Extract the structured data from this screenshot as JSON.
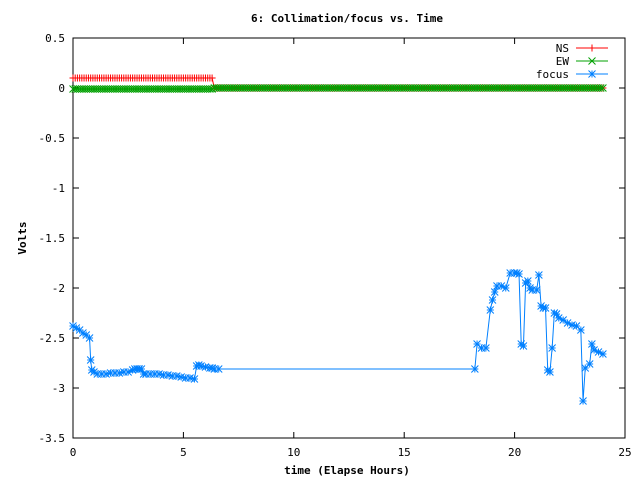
{
  "chart_data": {
    "type": "line",
    "title": "6: Collimation/focus vs. Time",
    "xlabel": "time (Elapse Hours)",
    "ylabel": "Volts",
    "xlim": [
      0,
      25
    ],
    "ylim": [
      -3.5,
      0.5
    ],
    "xticks": [
      0,
      5,
      10,
      15,
      20,
      25
    ],
    "yticks": [
      0.5,
      0,
      -0.5,
      -1,
      -1.5,
      -2,
      -2.5,
      -3,
      -3.5
    ],
    "xtick_labels": [
      "0",
      "5",
      "10",
      "15",
      "20",
      "25"
    ],
    "ytick_labels": [
      "0.5",
      "0",
      "-0.5",
      "-1",
      "-1.5",
      "-2",
      "-2.5",
      "-3",
      "-3.5"
    ],
    "grid": false,
    "legend_position": "top-right",
    "series": [
      {
        "name": "NS",
        "color": "#ff0000",
        "marker": "plus",
        "segments": [
          {
            "x_start": 0.0,
            "x_end": 6.3,
            "step": 0.1,
            "y": 0.1
          },
          {
            "x_start": 6.4,
            "x_end": 24.0,
            "step": 0.1,
            "y": 0.0
          }
        ]
      },
      {
        "name": "EW",
        "color": "#00a000",
        "marker": "cross",
        "segments": [
          {
            "x_start": 0.0,
            "x_end": 6.3,
            "step": 0.1,
            "y": -0.01
          },
          {
            "x_start": 6.4,
            "x_end": 24.0,
            "step": 0.1,
            "y": 0.0
          }
        ]
      },
      {
        "name": "focus",
        "color": "#0080ff",
        "marker": "star",
        "x": [
          0.0,
          0.15,
          0.3,
          0.45,
          0.6,
          0.75,
          0.8,
          0.85,
          0.95,
          1.1,
          1.3,
          1.5,
          1.7,
          1.9,
          2.1,
          2.3,
          2.5,
          2.7,
          2.8,
          2.9,
          3.0,
          3.1,
          3.2,
          3.3,
          3.5,
          3.7,
          3.9,
          4.1,
          4.3,
          4.5,
          4.7,
          4.9,
          5.1,
          5.3,
          5.5,
          5.6,
          5.7,
          5.8,
          6.0,
          6.2,
          6.3,
          6.4,
          6.6,
          18.2,
          18.3,
          18.5,
          18.7,
          18.9,
          19.0,
          19.1,
          19.2,
          19.4,
          19.6,
          19.8,
          20.0,
          20.1,
          20.2,
          20.3,
          20.4,
          20.5,
          20.6,
          20.7,
          20.8,
          21.0,
          21.1,
          21.2,
          21.3,
          21.4,
          21.5,
          21.6,
          21.7,
          21.8,
          21.9,
          22.0,
          22.2,
          22.4,
          22.6,
          22.8,
          23.0,
          23.1,
          23.2,
          23.4,
          23.5,
          23.6,
          23.8,
          24.0
        ],
        "y": [
          -2.38,
          -2.4,
          -2.42,
          -2.45,
          -2.47,
          -2.5,
          -2.72,
          -2.82,
          -2.84,
          -2.86,
          -2.86,
          -2.86,
          -2.85,
          -2.85,
          -2.85,
          -2.84,
          -2.84,
          -2.82,
          -2.81,
          -2.81,
          -2.81,
          -2.81,
          -2.86,
          -2.86,
          -2.86,
          -2.86,
          -2.86,
          -2.87,
          -2.87,
          -2.88,
          -2.88,
          -2.89,
          -2.9,
          -2.9,
          -2.91,
          -2.78,
          -2.77,
          -2.78,
          -2.79,
          -2.8,
          -2.8,
          -2.81,
          -2.81,
          -2.81,
          -2.56,
          -2.6,
          -2.6,
          -2.22,
          -2.12,
          -2.04,
          -1.98,
          -1.98,
          -2.0,
          -1.85,
          -1.85,
          -1.85,
          -1.86,
          -2.56,
          -2.58,
          -1.95,
          -1.93,
          -2.0,
          -2.02,
          -2.02,
          -1.87,
          -2.18,
          -2.2,
          -2.2,
          -2.82,
          -2.84,
          -2.6,
          -2.25,
          -2.26,
          -2.3,
          -2.32,
          -2.35,
          -2.37,
          -2.38,
          -2.42,
          -3.13,
          -2.8,
          -2.76,
          -2.56,
          -2.62,
          -2.64,
          -2.66
        ]
      }
    ]
  }
}
